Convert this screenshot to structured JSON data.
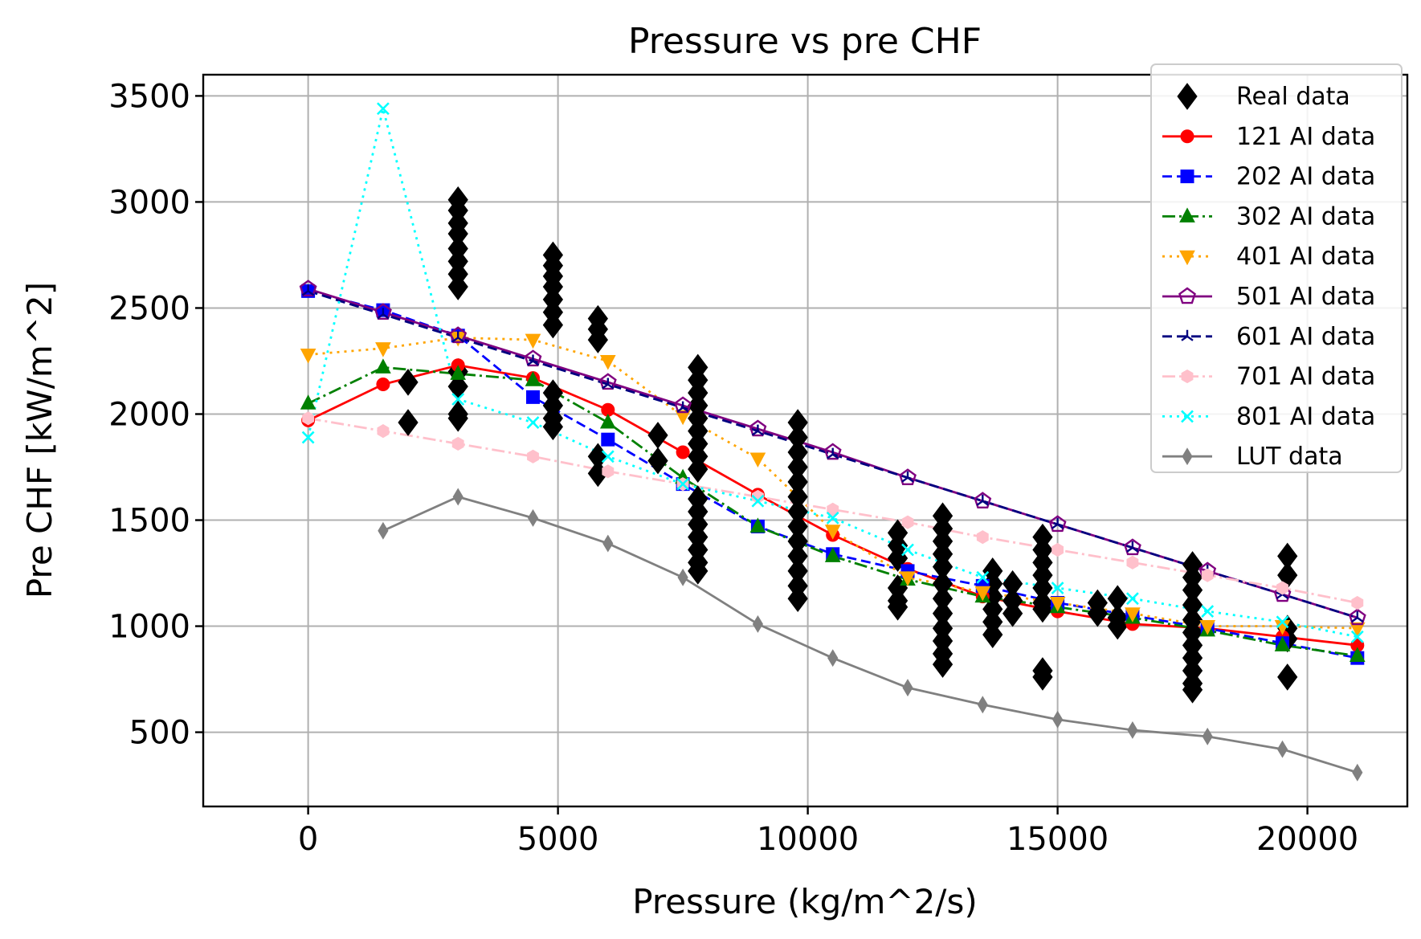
{
  "chart_data": {
    "type": "scatter",
    "title": "Pressure vs pre CHF",
    "xlabel": "Pressure (kg/m^2/s)",
    "ylabel": "Pre CHF [kW/m^2]",
    "xlim": [
      -2100,
      22000
    ],
    "ylim": [
      150,
      3600
    ],
    "xticks": [
      0,
      5000,
      10000,
      15000,
      20000
    ],
    "yticks": [
      500,
      1000,
      1500,
      2000,
      2500,
      3000,
      3500
    ],
    "grid": true,
    "legend_position": "top-right",
    "real_data": {
      "name": "Real data",
      "color": "#000000",
      "marker": "diamond",
      "points": [
        [
          2000,
          2150
        ],
        [
          2000,
          1960
        ],
        [
          3000,
          3010
        ],
        [
          3000,
          2960
        ],
        [
          3000,
          2900
        ],
        [
          3000,
          2850
        ],
        [
          3000,
          2780
        ],
        [
          3000,
          2720
        ],
        [
          3000,
          2660
        ],
        [
          3000,
          2600
        ],
        [
          3000,
          2200
        ],
        [
          3000,
          2130
        ],
        [
          3000,
          2000
        ],
        [
          3000,
          1980
        ],
        [
          4900,
          2750
        ],
        [
          4900,
          2700
        ],
        [
          4900,
          2650
        ],
        [
          4900,
          2600
        ],
        [
          4900,
          2540
        ],
        [
          4900,
          2480
        ],
        [
          4900,
          2420
        ],
        [
          4900,
          2100
        ],
        [
          4900,
          2040
        ],
        [
          4900,
          1980
        ],
        [
          4900,
          1940
        ],
        [
          5800,
          2450
        ],
        [
          5800,
          2400
        ],
        [
          5800,
          2350
        ],
        [
          5800,
          1800
        ],
        [
          5800,
          1720
        ],
        [
          7000,
          1900
        ],
        [
          7000,
          1780
        ],
        [
          7800,
          2220
        ],
        [
          7800,
          2160
        ],
        [
          7800,
          2100
        ],
        [
          7800,
          2040
        ],
        [
          7800,
          1980
        ],
        [
          7800,
          1920
        ],
        [
          7800,
          1860
        ],
        [
          7800,
          1800
        ],
        [
          7800,
          1740
        ],
        [
          7800,
          1600
        ],
        [
          7800,
          1540
        ],
        [
          7800,
          1480
        ],
        [
          7800,
          1420
        ],
        [
          7800,
          1360
        ],
        [
          7800,
          1300
        ],
        [
          7800,
          1260
        ],
        [
          9800,
          1960
        ],
        [
          9800,
          1890
        ],
        [
          9800,
          1820
        ],
        [
          9800,
          1750
        ],
        [
          9800,
          1680
        ],
        [
          9800,
          1610
        ],
        [
          9800,
          1540
        ],
        [
          9800,
          1470
        ],
        [
          9800,
          1400
        ],
        [
          9800,
          1330
        ],
        [
          9800,
          1260
        ],
        [
          9800,
          1190
        ],
        [
          9800,
          1130
        ],
        [
          11800,
          1440
        ],
        [
          11800,
          1380
        ],
        [
          11800,
          1320
        ],
        [
          11800,
          1180
        ],
        [
          11800,
          1120
        ],
        [
          11800,
          1090
        ],
        [
          12700,
          1520
        ],
        [
          12700,
          1460
        ],
        [
          12700,
          1400
        ],
        [
          12700,
          1340
        ],
        [
          12700,
          1280
        ],
        [
          12700,
          1200
        ],
        [
          12700,
          1130
        ],
        [
          12700,
          1060
        ],
        [
          12700,
          990
        ],
        [
          12700,
          930
        ],
        [
          12700,
          870
        ],
        [
          12700,
          820
        ],
        [
          13700,
          1260
        ],
        [
          13700,
          1200
        ],
        [
          13700,
          1140
        ],
        [
          13700,
          1080
        ],
        [
          13700,
          1020
        ],
        [
          13700,
          960
        ],
        [
          14100,
          1200
        ],
        [
          14100,
          1120
        ],
        [
          14100,
          1060
        ],
        [
          14700,
          1420
        ],
        [
          14700,
          1360
        ],
        [
          14700,
          1300
        ],
        [
          14700,
          1240
        ],
        [
          14700,
          1180
        ],
        [
          14700,
          1110
        ],
        [
          14700,
          1080
        ],
        [
          14700,
          790
        ],
        [
          14700,
          760
        ],
        [
          15800,
          1110
        ],
        [
          15800,
          1060
        ],
        [
          16200,
          1130
        ],
        [
          16200,
          1040
        ],
        [
          16200,
          1000
        ],
        [
          17700,
          1290
        ],
        [
          17700,
          1230
        ],
        [
          17700,
          1170
        ],
        [
          17700,
          1100
        ],
        [
          17700,
          1030
        ],
        [
          17700,
          970
        ],
        [
          17700,
          910
        ],
        [
          17700,
          850
        ],
        [
          17700,
          790
        ],
        [
          17700,
          730
        ],
        [
          17700,
          700
        ],
        [
          19600,
          1330
        ],
        [
          19600,
          1240
        ],
        [
          19600,
          990
        ],
        [
          19600,
          940
        ],
        [
          19600,
          760
        ]
      ]
    },
    "series": [
      {
        "name": "121 AI data",
        "color": "#ff0000",
        "dash": "",
        "marker": "circle",
        "x": [
          0,
          1500,
          3000,
          4500,
          6000,
          7500,
          9000,
          10500,
          12000,
          13500,
          15000,
          16500,
          18000,
          19500,
          21000
        ],
        "y": [
          1970,
          2140,
          2230,
          2170,
          2020,
          1820,
          1620,
          1430,
          1270,
          1140,
          1070,
          1010,
          990,
          950,
          910
        ]
      },
      {
        "name": "202 AI data",
        "color": "#0000ff",
        "dash": "12,6",
        "marker": "square",
        "x": [
          0,
          1500,
          3000,
          4500,
          6000,
          7500,
          9000,
          10500,
          12000,
          13500,
          15000,
          16500,
          18000,
          19500,
          21000
        ],
        "y": [
          2580,
          2490,
          2370,
          2080,
          1880,
          1670,
          1470,
          1340,
          1260,
          1190,
          1110,
          1050,
          990,
          920,
          850
        ]
      },
      {
        "name": "302 AI data",
        "color": "#008000",
        "dash": "16,5,3,5",
        "marker": "triangle-up",
        "x": [
          0,
          1500,
          3000,
          4500,
          6000,
          7500,
          9000,
          10500,
          12000,
          13500,
          15000,
          16500,
          18000,
          19500,
          21000
        ],
        "y": [
          2050,
          2220,
          2190,
          2160,
          1960,
          1700,
          1470,
          1330,
          1220,
          1140,
          1090,
          1040,
          980,
          910,
          860
        ]
      },
      {
        "name": "401 AI data",
        "color": "#ffa500",
        "dash": "3,6",
        "marker": "triangle-down",
        "x": [
          0,
          1500,
          3000,
          4500,
          6000,
          7500,
          9000,
          10500,
          12000,
          13500,
          15000,
          16500,
          18000,
          19500,
          21000
        ],
        "y": [
          2280,
          2310,
          2360,
          2350,
          2250,
          1990,
          1790,
          1450,
          1230,
          1160,
          1110,
          1060,
          1000,
          1000,
          990
        ]
      },
      {
        "name": "501 AI data",
        "color": "#800080",
        "dash": "",
        "marker": "pentagon",
        "x": [
          0,
          1500,
          3000,
          4500,
          6000,
          7500,
          9000,
          10500,
          12000,
          13500,
          15000,
          16500,
          18000,
          19500,
          21000
        ],
        "y": [
          2590,
          2480,
          2370,
          2260,
          2150,
          2040,
          1930,
          1820,
          1700,
          1590,
          1480,
          1370,
          1260,
          1150,
          1040
        ]
      },
      {
        "name": "601 AI data",
        "color": "#000080",
        "dash": "12,6",
        "marker": "tri",
        "x": [
          0,
          1500,
          3000,
          4500,
          6000,
          7500,
          9000,
          10500,
          12000,
          13500,
          15000,
          16500,
          18000,
          19500,
          21000
        ],
        "y": [
          2580,
          2470,
          2360,
          2250,
          2140,
          2030,
          1920,
          1810,
          1700,
          1590,
          1480,
          1370,
          1260,
          1150,
          1040
        ]
      },
      {
        "name": "701 AI data",
        "color": "#ffc0cb",
        "dash": "16,5,3,5",
        "marker": "hexagon",
        "x": [
          0,
          1500,
          3000,
          4500,
          6000,
          7500,
          9000,
          10500,
          12000,
          13500,
          15000,
          16500,
          18000,
          19500,
          21000
        ],
        "y": [
          1980,
          1920,
          1860,
          1800,
          1730,
          1670,
          1610,
          1550,
          1490,
          1420,
          1360,
          1300,
          1240,
          1180,
          1110
        ]
      },
      {
        "name": "801 AI data",
        "color": "#00ffff",
        "dash": "3,6",
        "marker": "x",
        "x": [
          0,
          1500,
          3000,
          4500,
          6000,
          7500,
          9000,
          10500,
          12000,
          13500,
          15000,
          16500,
          18000,
          19500,
          21000
        ],
        "y": [
          1890,
          3440,
          2070,
          1960,
          1800,
          1670,
          1590,
          1510,
          1360,
          1230,
          1180,
          1130,
          1070,
          1020,
          950
        ]
      },
      {
        "name": "LUT data",
        "color": "#808080",
        "dash": "",
        "marker": "thin-diamond",
        "x": [
          1500,
          3000,
          4500,
          6000,
          7500,
          9000,
          10500,
          12000,
          13500,
          15000,
          16500,
          18000,
          19500,
          21000
        ],
        "y": [
          1450,
          1610,
          1510,
          1390,
          1230,
          1010,
          850,
          710,
          630,
          560,
          510,
          480,
          420,
          310
        ]
      }
    ]
  }
}
